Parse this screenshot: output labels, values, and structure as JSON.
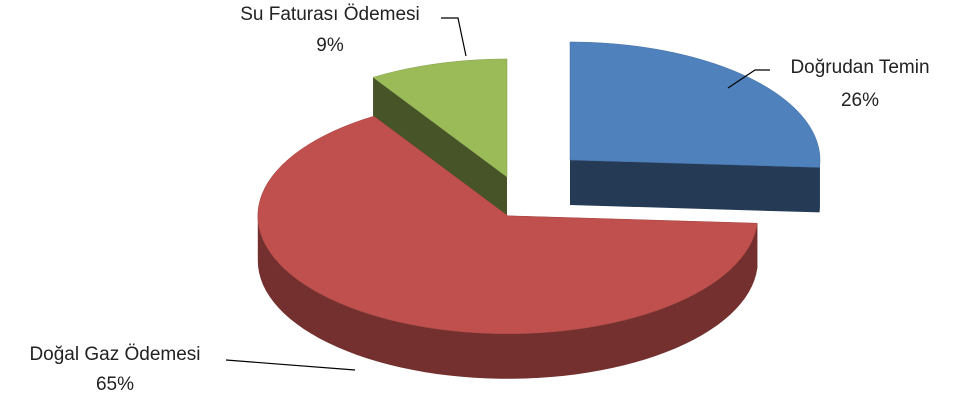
{
  "chart_data": {
    "type": "pie3d",
    "categories": [
      "Doğrudan Temin",
      "Doğal Gaz Ödemesi",
      "Su Faturası Ödemesi"
    ],
    "values": [
      26,
      65,
      9
    ],
    "value_labels": [
      "26%",
      "65%",
      "9%"
    ],
    "colors": [
      "#4f81bd",
      "#c0504d",
      "#9bbb59"
    ],
    "exploded": [
      true,
      false,
      true
    ]
  }
}
